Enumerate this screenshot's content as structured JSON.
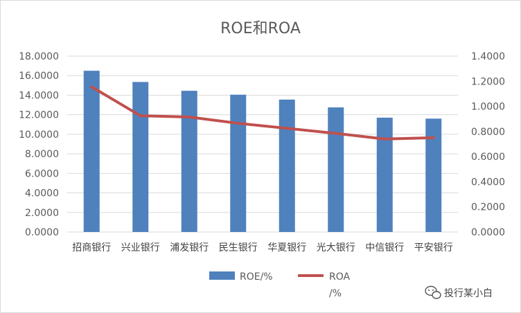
{
  "chart_data": {
    "type": "bar+line",
    "title": "ROE和ROA",
    "categories": [
      "招商银行",
      "兴业银行",
      "浦发银行",
      "民生银行",
      "华夏银行",
      "光大银行",
      "中信银行",
      "平安银行"
    ],
    "series": [
      {
        "name": "ROE/%",
        "type": "bar",
        "axis": "left",
        "color": "#4f81bd",
        "values": [
          16.5,
          15.35,
          14.45,
          14.05,
          13.55,
          12.75,
          11.7,
          11.6
        ]
      },
      {
        "name": "ROA /%",
        "type": "line",
        "axis": "right",
        "color": "#c0504d",
        "values": [
          1.155,
          0.925,
          0.915,
          0.865,
          0.825,
          0.785,
          0.74,
          0.75
        ]
      }
    ],
    "y_left": {
      "range": [
        0,
        18
      ],
      "ticks": [
        "0.0000",
        "2.0000",
        "4.0000",
        "6.0000",
        "8.0000",
        "10.0000",
        "12.0000",
        "14.0000",
        "16.0000",
        "18.0000"
      ]
    },
    "y_right": {
      "range": [
        0,
        1.4
      ],
      "ticks": [
        "0.0000",
        "0.2000",
        "0.4000",
        "0.6000",
        "0.8000",
        "1.0000",
        "1.2000",
        "1.4000"
      ]
    },
    "grid": true,
    "legend": {
      "position": "bottom",
      "entries": [
        {
          "label": "ROE/%",
          "symbol": "bar"
        },
        {
          "label_line1": "ROA",
          "label_line2": "/%",
          "symbol": "line"
        }
      ]
    }
  },
  "watermark": {
    "icon": "wechat-icon",
    "text": "投行某小白"
  }
}
